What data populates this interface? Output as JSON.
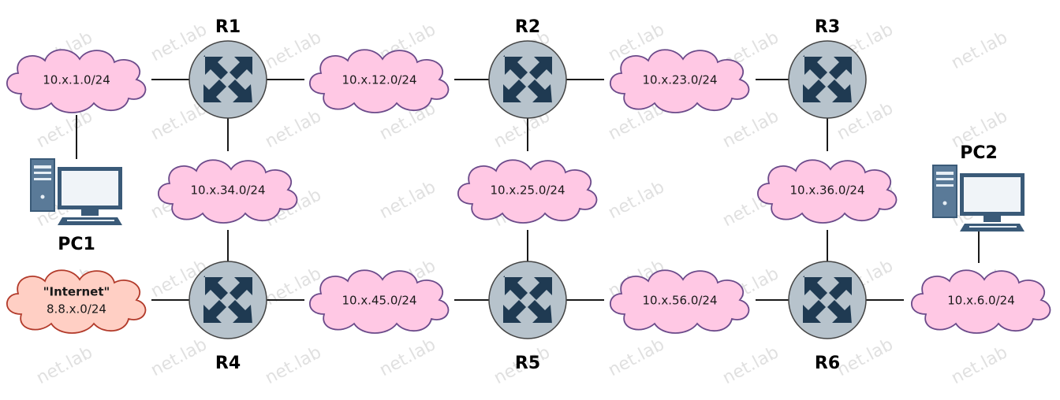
{
  "watermark": "net.lab",
  "routers": {
    "r1": "R1",
    "r2": "R2",
    "r3": "R3",
    "r4": "R4",
    "r5": "R5",
    "r6": "R6"
  },
  "pcs": {
    "pc1": "PC1",
    "pc2": "PC2"
  },
  "networks": {
    "n1": "10.x.1.0/24",
    "n12": "10.x.12.0/24",
    "n23": "10.x.23.0/24",
    "n34": "10.x.34.0/24",
    "n25": "10.x.25.0/24",
    "n36": "10.x.36.0/24",
    "n45": "10.x.45.0/24",
    "n56": "10.x.56.0/24",
    "n6": "10.x.6.0/24",
    "internet_name": "\"Internet\"",
    "internet_net": "8.8.x.0/24"
  },
  "colors": {
    "cloud_fill": "#ffc8e4",
    "cloud_stroke": "#6b4a8a",
    "internet_fill": "#ffcfc4",
    "internet_stroke": "#b23a2a",
    "router_fill": "#b7c3cc",
    "router_stroke": "#444444",
    "arrow": "#1f3a52",
    "pc": "#3a5a78"
  }
}
